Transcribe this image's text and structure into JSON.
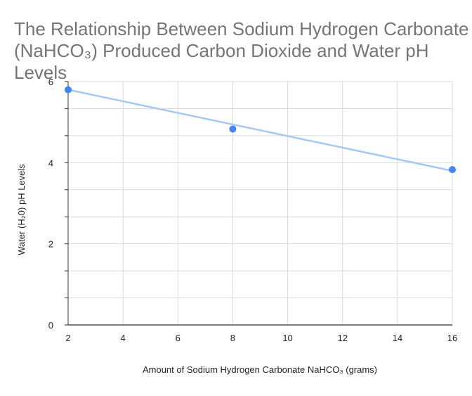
{
  "chart_data": {
    "type": "scatter",
    "title_line1": "The Relationship Between Sodium Hydrogen Carbonate",
    "title_line2": "(NaHCO₃) Produced Carbon Dioxide and Water pH Levels",
    "xlabel": "Amount of Sodium Hydrogen Carbonate NaHCO₃ (grams)",
    "ylabel": "Water (H₂0) pH Levels",
    "xlim": [
      2,
      16
    ],
    "ylim": [
      0,
      6
    ],
    "x_ticks": [
      2,
      4,
      6,
      8,
      10,
      12,
      14,
      16
    ],
    "y_ticks": [
      0,
      2,
      4,
      6
    ],
    "points": [
      {
        "x": 2,
        "y": 5.8
      },
      {
        "x": 8,
        "y": 4.83
      },
      {
        "x": 16,
        "y": 3.83
      }
    ],
    "trendline": {
      "x_start": 2,
      "y_start": 5.8,
      "x_end": 16,
      "y_end": 3.8
    },
    "grid": true,
    "colors": {
      "point": "#4285f4",
      "trendline": "#a6c8f4",
      "grid": "#d9d9d9",
      "axis": "#333333"
    }
  }
}
